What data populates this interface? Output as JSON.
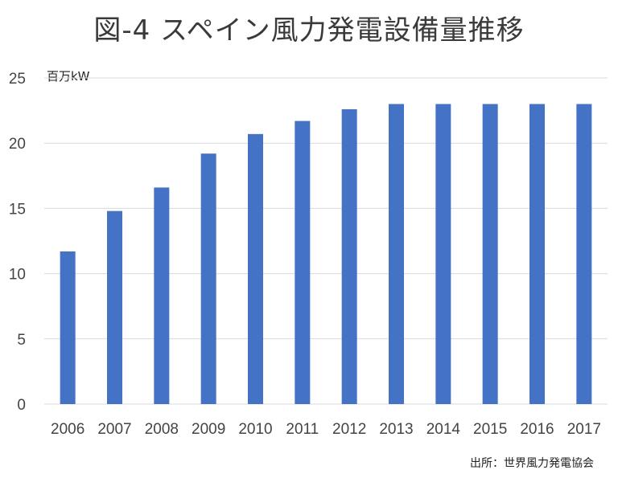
{
  "title": "図-4 スペイン風力発電設備量推移",
  "unit_label": "百万kW",
  "source": "出所：世界風力発電協会",
  "colors": {
    "bar": "#4472C4",
    "grid": "#D9D9D9"
  },
  "chart_data": {
    "type": "bar",
    "categories": [
      "2006",
      "2007",
      "2008",
      "2009",
      "2010",
      "2011",
      "2012",
      "2013",
      "2014",
      "2015",
      "2016",
      "2017"
    ],
    "values": [
      11.7,
      14.8,
      16.6,
      19.2,
      20.7,
      21.7,
      22.6,
      23.0,
      23.0,
      23.0,
      23.0,
      23.0
    ],
    "ylim": [
      0,
      25
    ],
    "yticks": [
      0,
      5,
      10,
      15,
      20,
      25
    ],
    "grid": true,
    "legend": "none"
  }
}
